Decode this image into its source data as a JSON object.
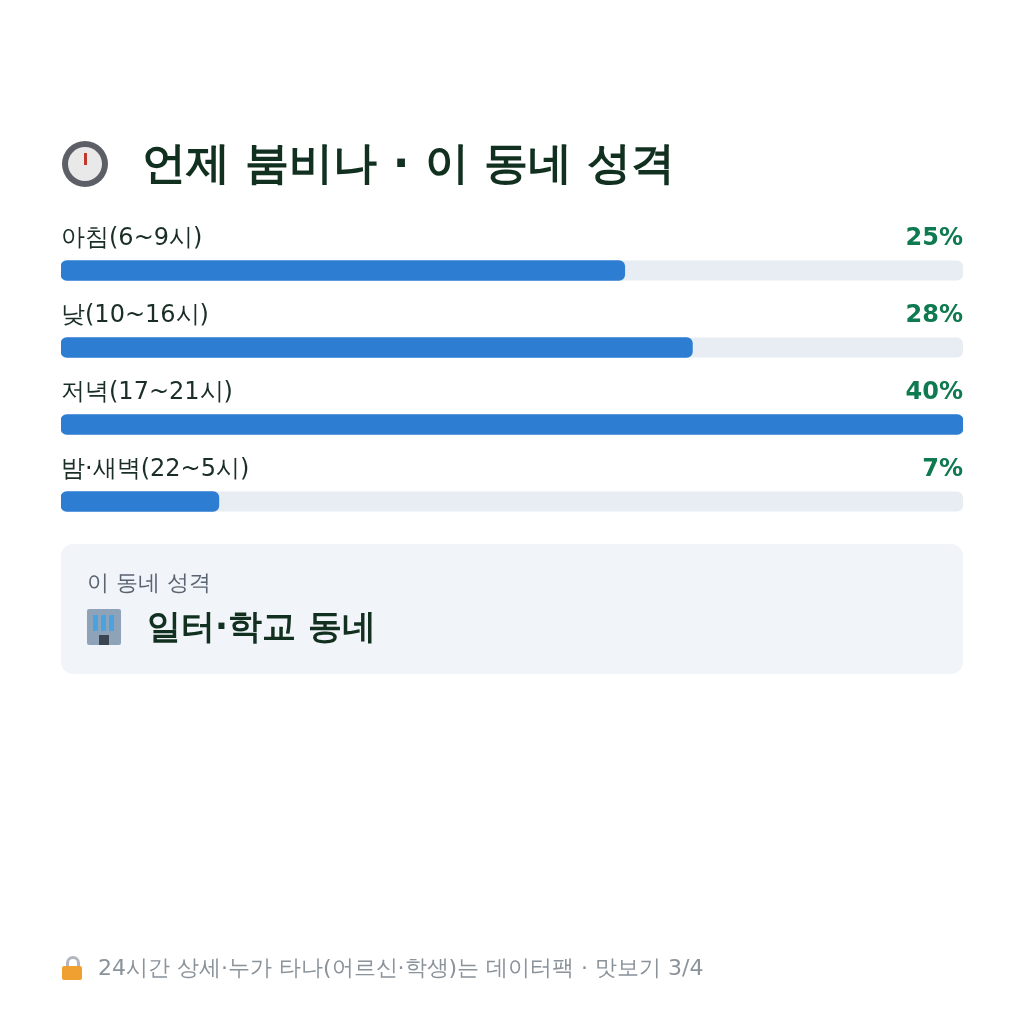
{
  "chart_data": {
    "type": "bar",
    "orientation": "horizontal",
    "title": "언제 붐비나 · 이 동네 성격",
    "categories": [
      "아침(6~9시)",
      "낮(10~16시)",
      "저녁(17~21시)",
      "밤·새벽(22~5시)"
    ],
    "values": [
      25,
      28,
      40,
      7
    ],
    "value_labels": [
      "25%",
      "28%",
      "40%",
      "7%"
    ],
    "color": "#2d7dd2",
    "xlim": [
      0,
      40
    ],
    "tick_labels": false,
    "legend": false,
    "annotations": [
      "이 동네 성격",
      "일터·학교 동네",
      "24시간 상세·누가 타나(어르신·학생)는 데이터팩 · 맛보기 3/4"
    ]
  }
}
